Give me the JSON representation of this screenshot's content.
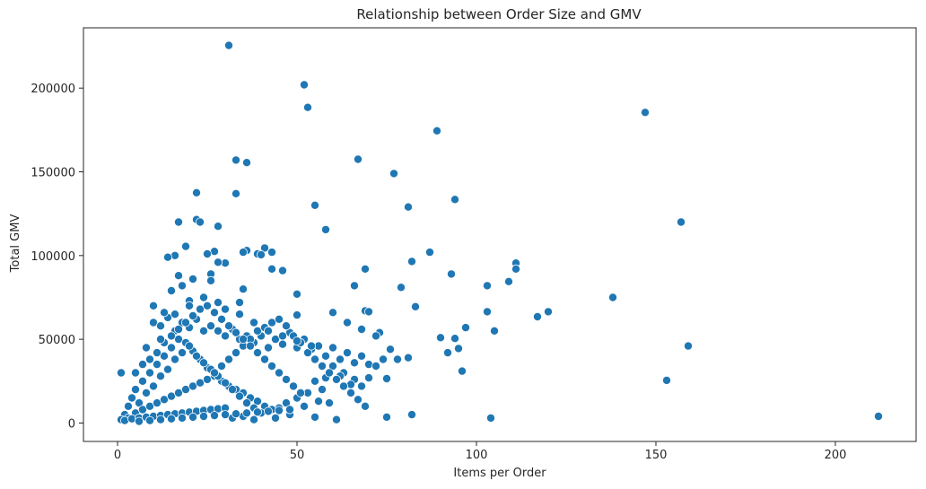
{
  "chart_data": {
    "type": "scatter",
    "title": "Relationship between Order Size and GMV",
    "xlabel": "Items per Order",
    "ylabel": "Total GMV",
    "xlim": [
      -9.5,
      222.5
    ],
    "ylim": [
      -11000,
      236000
    ],
    "xticks": [
      0,
      50,
      100,
      150,
      200
    ],
    "yticks": [
      0,
      50000,
      100000,
      150000,
      200000
    ],
    "grid": false,
    "colors": {
      "point": "#1f77b4",
      "point_edge": "#ffffff"
    },
    "points": [
      [
        31,
        225500
      ],
      [
        52,
        202000
      ],
      [
        53,
        188500
      ],
      [
        147,
        185500
      ],
      [
        89,
        174500
      ],
      [
        33,
        157000
      ],
      [
        67,
        157500
      ],
      [
        36,
        155500
      ],
      [
        77,
        149000
      ],
      [
        22,
        137500
      ],
      [
        33,
        137000
      ],
      [
        94,
        133500
      ],
      [
        55,
        130000
      ],
      [
        81,
        129000
      ],
      [
        22,
        121500
      ],
      [
        17,
        120000
      ],
      [
        23,
        120000
      ],
      [
        157,
        120000
      ],
      [
        28,
        117500
      ],
      [
        58,
        115500
      ],
      [
        19,
        105500
      ],
      [
        41,
        104500
      ],
      [
        36,
        103000
      ],
      [
        43,
        102000
      ],
      [
        87,
        102000
      ],
      [
        35,
        102000
      ],
      [
        27,
        102500
      ],
      [
        25,
        101000
      ],
      [
        39,
        101000
      ],
      [
        40,
        100500
      ],
      [
        16,
        100000
      ],
      [
        14,
        99000
      ],
      [
        82,
        96500
      ],
      [
        111,
        95500
      ],
      [
        30,
        95500
      ],
      [
        28,
        96000
      ],
      [
        111,
        92000
      ],
      [
        69,
        92000
      ],
      [
        46,
        91000
      ],
      [
        43,
        92000
      ],
      [
        93,
        89000
      ],
      [
        109,
        84500
      ],
      [
        17,
        88000
      ],
      [
        26,
        89000
      ],
      [
        103,
        82000
      ],
      [
        66,
        82000
      ],
      [
        79,
        81000
      ],
      [
        35,
        80000
      ],
      [
        50,
        77000
      ],
      [
        138,
        75000
      ],
      [
        20,
        73000
      ],
      [
        28,
        72000
      ],
      [
        34,
        72000
      ],
      [
        83,
        69500
      ],
      [
        69,
        67000
      ],
      [
        70,
        66500
      ],
      [
        103,
        66500
      ],
      [
        120,
        66500
      ],
      [
        117,
        63500
      ],
      [
        50,
        64500
      ],
      [
        97,
        57000
      ],
      [
        105,
        55000
      ],
      [
        73,
        54000
      ],
      [
        90,
        51000
      ],
      [
        94,
        50500
      ],
      [
        159,
        46000
      ],
      [
        76,
        44000
      ],
      [
        92,
        42000
      ],
      [
        78,
        38000
      ],
      [
        81,
        39000
      ],
      [
        96,
        31000
      ],
      [
        75,
        26500
      ],
      [
        153,
        25500
      ],
      [
        95,
        44500
      ],
      [
        1,
        30000
      ],
      [
        66,
        26000
      ],
      [
        70,
        27000
      ],
      [
        82,
        5000
      ],
      [
        75,
        3500
      ],
      [
        104,
        3000
      ],
      [
        212,
        4000
      ],
      [
        61,
        2000
      ],
      [
        55,
        3500
      ],
      [
        48,
        5000
      ],
      [
        10,
        60000
      ],
      [
        12,
        58000
      ],
      [
        14,
        63000
      ],
      [
        16,
        55000
      ],
      [
        18,
        60000
      ],
      [
        20,
        57000
      ],
      [
        22,
        62000
      ],
      [
        24,
        55000
      ],
      [
        26,
        58000
      ],
      [
        28,
        55000
      ],
      [
        30,
        52000
      ],
      [
        32,
        56000
      ],
      [
        34,
        50000
      ],
      [
        36,
        52000
      ],
      [
        38,
        48000
      ],
      [
        40,
        52000
      ],
      [
        42,
        45000
      ],
      [
        44,
        50000
      ],
      [
        46,
        47000
      ],
      [
        48,
        54000
      ],
      [
        50,
        45000
      ],
      [
        52,
        50000
      ],
      [
        54,
        44000
      ],
      [
        56,
        46000
      ],
      [
        58,
        40000
      ],
      [
        60,
        45000
      ],
      [
        62,
        38000
      ],
      [
        64,
        42000
      ],
      [
        66,
        36000
      ],
      [
        68,
        40000
      ],
      [
        70,
        35000
      ],
      [
        72,
        34000
      ],
      [
        74,
        38000
      ],
      [
        60,
        34000
      ],
      [
        63,
        30000
      ],
      [
        58,
        27000
      ],
      [
        55,
        25000
      ],
      [
        62,
        28000
      ],
      [
        65,
        23000
      ],
      [
        68,
        22000
      ],
      [
        57,
        20000
      ],
      [
        53,
        18000
      ],
      [
        50,
        15000
      ],
      [
        47,
        12000
      ],
      [
        45,
        9000
      ],
      [
        42,
        7000
      ],
      [
        48,
        8000
      ],
      [
        52,
        10000
      ],
      [
        56,
        13000
      ],
      [
        59,
        12000
      ],
      [
        44,
        3000
      ],
      [
        38,
        2000
      ],
      [
        35,
        4000
      ],
      [
        32,
        3000
      ],
      [
        5,
        20000
      ],
      [
        7,
        25000
      ],
      [
        9,
        30000
      ],
      [
        11,
        35000
      ],
      [
        13,
        40000
      ],
      [
        15,
        45000
      ],
      [
        17,
        50000
      ],
      [
        19,
        48000
      ],
      [
        21,
        43000
      ],
      [
        23,
        38000
      ],
      [
        25,
        33000
      ],
      [
        27,
        28000
      ],
      [
        29,
        25000
      ],
      [
        31,
        22000
      ],
      [
        33,
        20000
      ],
      [
        35,
        18000
      ],
      [
        37,
        15000
      ],
      [
        39,
        13000
      ],
      [
        41,
        10000
      ],
      [
        43,
        8000
      ],
      [
        3,
        10000
      ],
      [
        4,
        15000
      ],
      [
        6,
        12000
      ],
      [
        8,
        18000
      ],
      [
        10,
        22000
      ],
      [
        12,
        28000
      ],
      [
        14,
        32000
      ],
      [
        16,
        38000
      ],
      [
        18,
        42000
      ],
      [
        20,
        46000
      ],
      [
        22,
        40000
      ],
      [
        24,
        36000
      ],
      [
        26,
        32000
      ],
      [
        28,
        28000
      ],
      [
        30,
        24000
      ],
      [
        32,
        20000
      ],
      [
        34,
        16000
      ],
      [
        36,
        12000
      ],
      [
        38,
        9000
      ],
      [
        40,
        6000
      ],
      [
        2,
        5000
      ],
      [
        3,
        3000
      ],
      [
        5,
        6000
      ],
      [
        7,
        8000
      ],
      [
        9,
        10000
      ],
      [
        11,
        12000
      ],
      [
        13,
        14000
      ],
      [
        15,
        16000
      ],
      [
        17,
        18000
      ],
      [
        19,
        20000
      ],
      [
        21,
        22000
      ],
      [
        23,
        24000
      ],
      [
        25,
        26000
      ],
      [
        27,
        30000
      ],
      [
        29,
        34000
      ],
      [
        31,
        38000
      ],
      [
        33,
        42000
      ],
      [
        35,
        46000
      ],
      [
        37,
        50000
      ],
      [
        39,
        55000
      ],
      [
        41,
        57000
      ],
      [
        43,
        60000
      ],
      [
        45,
        62000
      ],
      [
        47,
        58000
      ],
      [
        49,
        52000
      ],
      [
        51,
        48000
      ],
      [
        53,
        42000
      ],
      [
        55,
        38000
      ],
      [
        57,
        34000
      ],
      [
        59,
        30000
      ],
      [
        61,
        26000
      ],
      [
        63,
        22000
      ],
      [
        65,
        18000
      ],
      [
        67,
        14000
      ],
      [
        69,
        10000
      ],
      [
        1,
        2000
      ],
      [
        2,
        1500
      ],
      [
        4,
        2500
      ],
      [
        6,
        3000
      ],
      [
        8,
        3500
      ],
      [
        10,
        4000
      ],
      [
        12,
        4500
      ],
      [
        14,
        5000
      ],
      [
        16,
        5500
      ],
      [
        18,
        6000
      ],
      [
        20,
        6500
      ],
      [
        22,
        7000
      ],
      [
        24,
        7500
      ],
      [
        26,
        8000
      ],
      [
        28,
        8500
      ],
      [
        30,
        9000
      ],
      [
        5,
        30000
      ],
      [
        7,
        35000
      ],
      [
        9,
        38000
      ],
      [
        11,
        42000
      ],
      [
        13,
        48000
      ],
      [
        15,
        52000
      ],
      [
        17,
        56000
      ],
      [
        19,
        60000
      ],
      [
        21,
        64000
      ],
      [
        23,
        68000
      ],
      [
        25,
        70000
      ],
      [
        27,
        66000
      ],
      [
        29,
        62000
      ],
      [
        31,
        58000
      ],
      [
        33,
        54000
      ],
      [
        35,
        50000
      ],
      [
        37,
        46000
      ],
      [
        39,
        42000
      ],
      [
        41,
        38000
      ],
      [
        43,
        34000
      ],
      [
        45,
        30000
      ],
      [
        47,
        26000
      ],
      [
        49,
        22000
      ],
      [
        51,
        18000
      ],
      [
        6,
        1000
      ],
      [
        9,
        1500
      ],
      [
        12,
        2000
      ],
      [
        15,
        2500
      ],
      [
        18,
        3000
      ],
      [
        21,
        3500
      ],
      [
        24,
        4000
      ],
      [
        27,
        4500
      ],
      [
        30,
        5000
      ],
      [
        33,
        5500
      ],
      [
        36,
        6000
      ],
      [
        39,
        6500
      ],
      [
        42,
        7000
      ],
      [
        45,
        7500
      ],
      [
        48,
        8000
      ],
      [
        8,
        45000
      ],
      [
        12,
        50000
      ],
      [
        16,
        65000
      ],
      [
        20,
        70000
      ],
      [
        24,
        75000
      ],
      [
        26,
        85000
      ],
      [
        30,
        68000
      ],
      [
        34,
        65000
      ],
      [
        38,
        60000
      ],
      [
        42,
        55000
      ],
      [
        46,
        52000
      ],
      [
        50,
        49000
      ],
      [
        54,
        46000
      ],
      [
        10,
        70000
      ],
      [
        13,
        66000
      ],
      [
        18,
        82000
      ],
      [
        21,
        86000
      ],
      [
        15,
        79000
      ],
      [
        60,
        66000
      ],
      [
        64,
        60000
      ],
      [
        68,
        56000
      ],
      [
        72,
        52000
      ]
    ]
  }
}
